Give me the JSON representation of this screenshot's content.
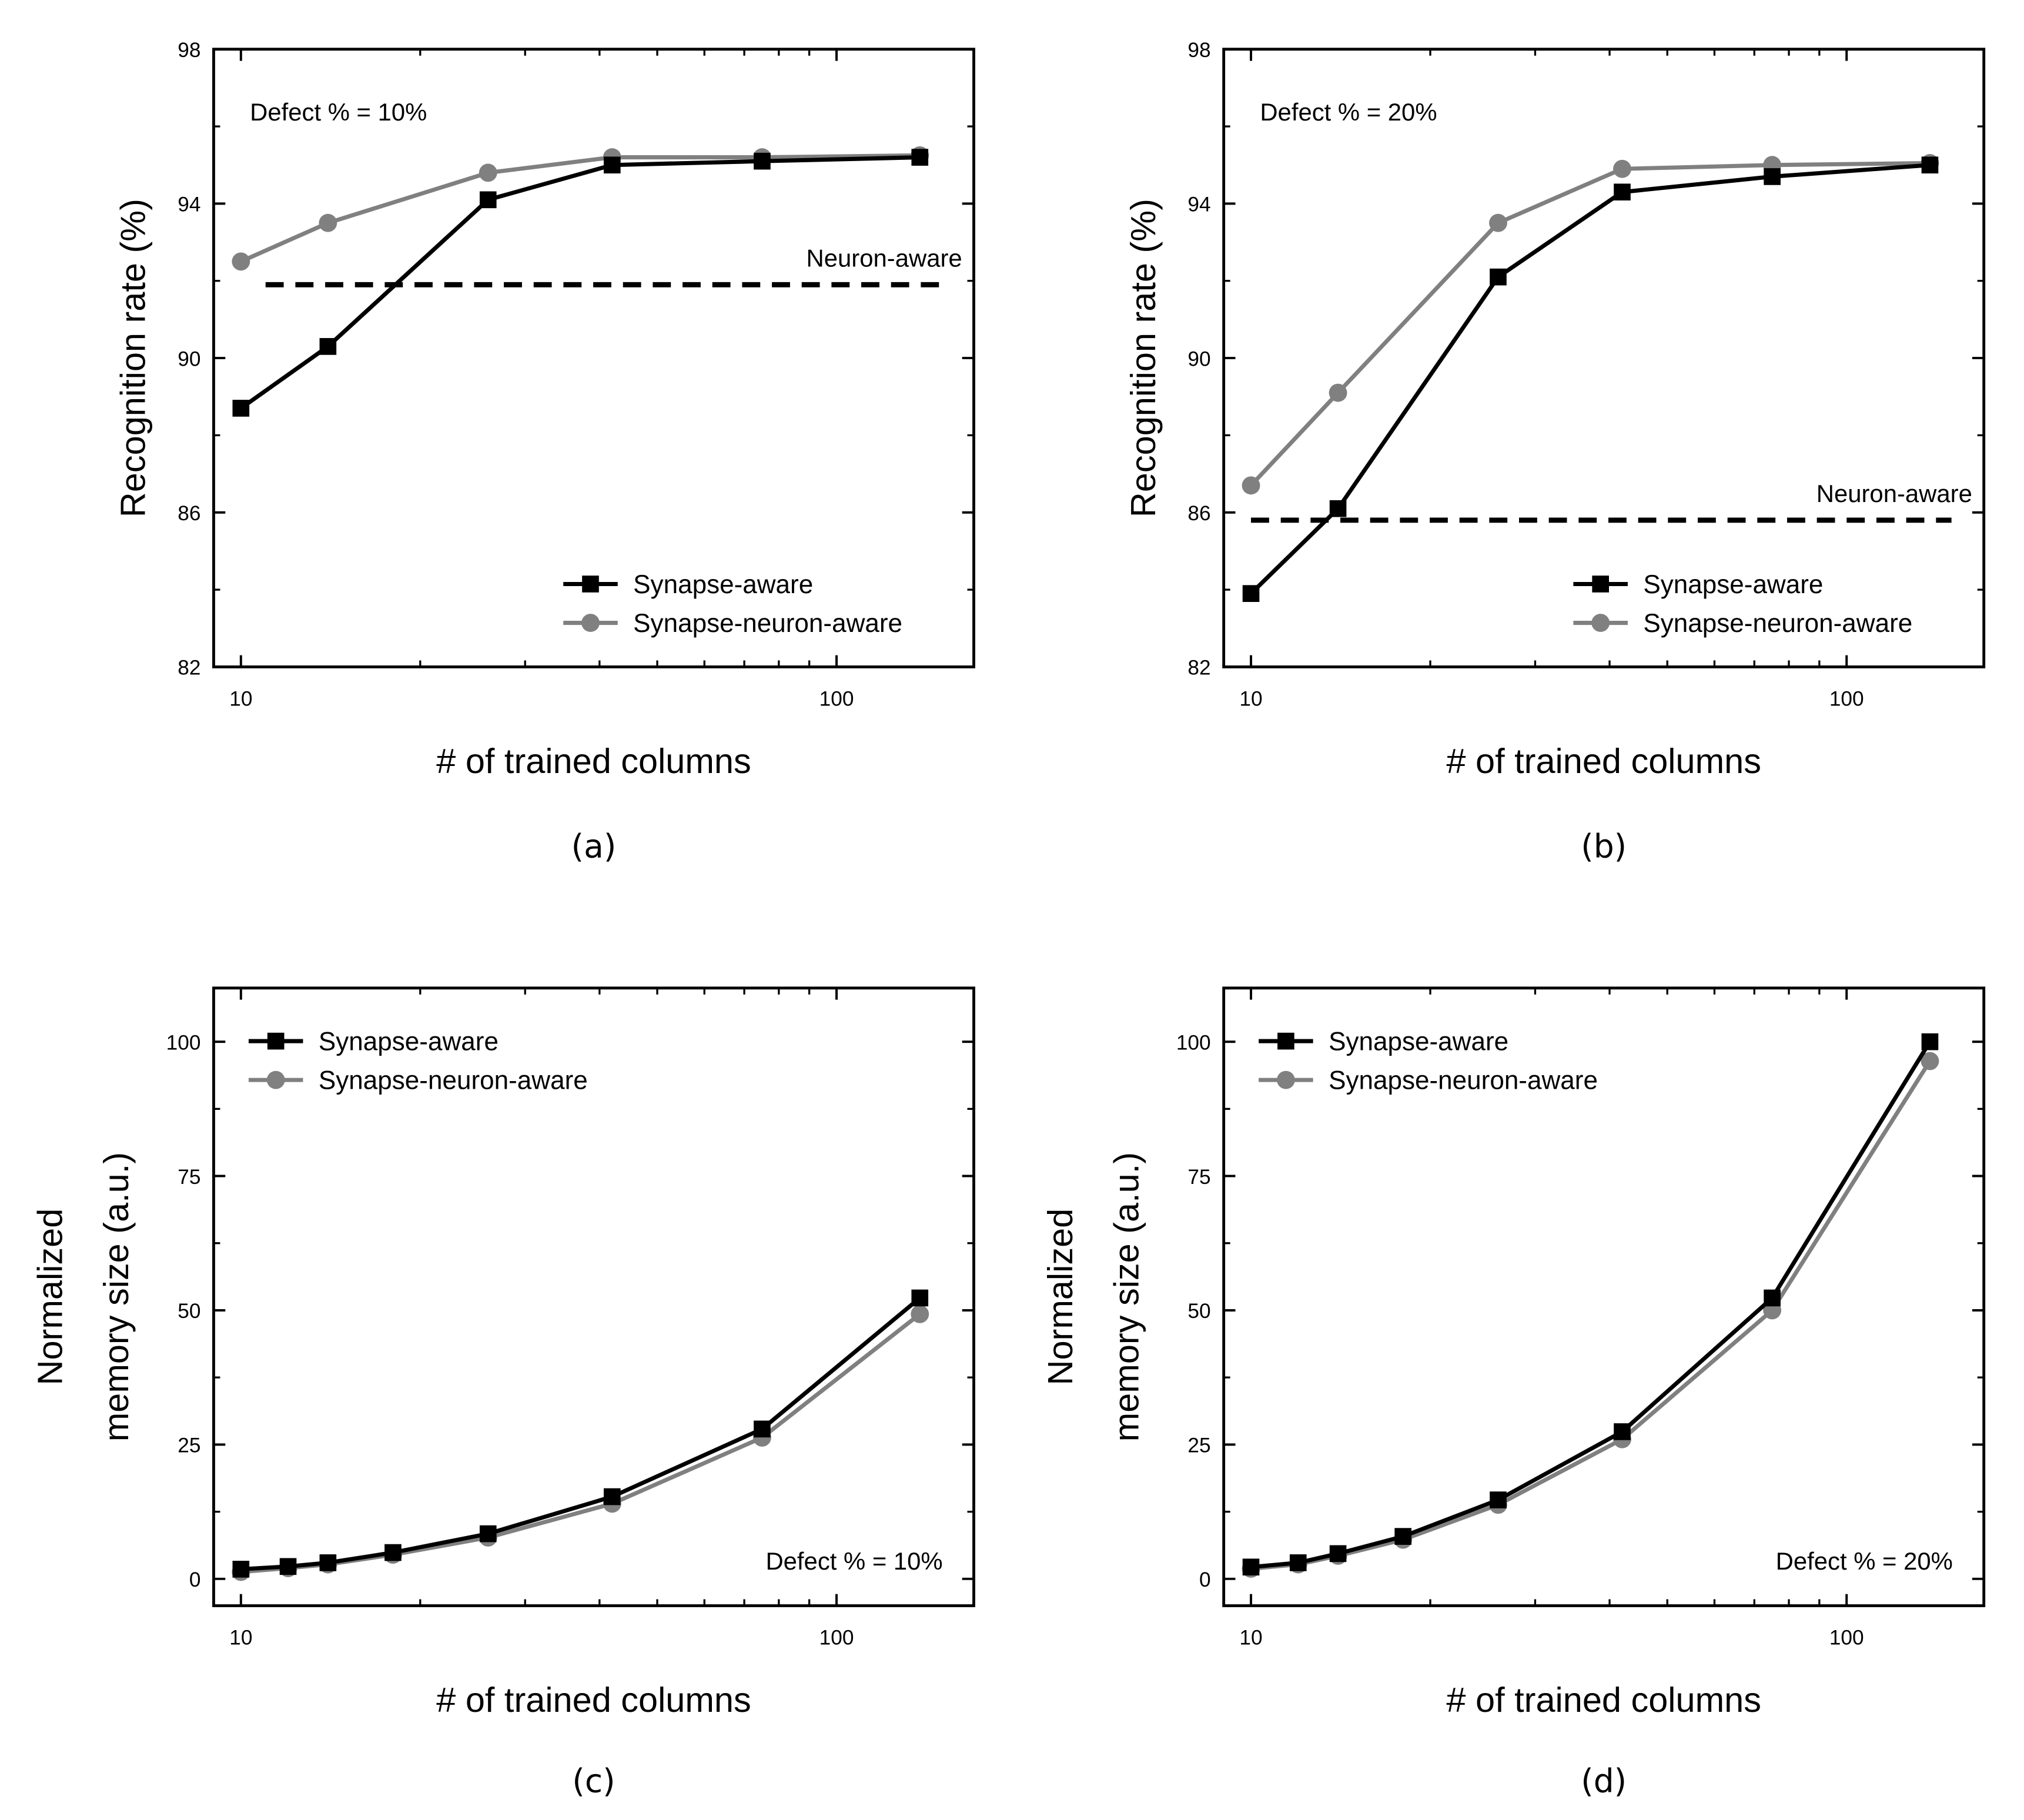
{
  "chart_data": [
    {
      "id": "a",
      "type": "line",
      "caption": "(a)",
      "xlabel": "# of trained columns",
      "ylabel": "Recognition rate (%)",
      "xscale": "log",
      "xlim": [
        9,
        170
      ],
      "ylim": [
        82,
        98
      ],
      "xticks": [
        10,
        100
      ],
      "xticklabels": [
        "10",
        "100"
      ],
      "yticks": [
        82,
        86,
        90,
        94,
        98
      ],
      "yticklabels": [
        "82",
        "86",
        "90",
        "94",
        "98"
      ],
      "annotation": "Defect % = 10%",
      "annotation_position": "top-left",
      "legend_position": "bottom-right",
      "series": [
        {
          "name": "Synapse-aware",
          "color": "#000000",
          "marker": "square",
          "x": [
            10,
            14,
            26,
            42,
            75,
            138
          ],
          "y": [
            88.7,
            90.3,
            94.1,
            95.0,
            95.1,
            95.2
          ]
        },
        {
          "name": "Synapse-neuron-aware",
          "color": "#808080",
          "marker": "circle",
          "x": [
            10,
            14,
            26,
            42,
            75,
            138
          ],
          "y": [
            92.5,
            93.5,
            94.8,
            95.2,
            95.2,
            95.25
          ]
        }
      ],
      "reference_line": {
        "name": "Neuron-aware",
        "label": "Neuron-aware",
        "y": 91.9,
        "x": [
          11,
          150
        ],
        "style": "dashed",
        "color": "#000000"
      }
    },
    {
      "id": "b",
      "type": "line",
      "caption": "(b)",
      "xlabel": "# of trained columns",
      "ylabel": "Recognition rate (%)",
      "xscale": "log",
      "xlim": [
        9,
        170
      ],
      "ylim": [
        82,
        98
      ],
      "xticks": [
        10,
        100
      ],
      "xticklabels": [
        "10",
        "100"
      ],
      "yticks": [
        82,
        86,
        90,
        94,
        98
      ],
      "yticklabels": [
        "82",
        "86",
        "90",
        "94",
        "98"
      ],
      "annotation": "Defect % = 20%",
      "annotation_position": "top-left",
      "legend_position": "bottom-right",
      "series": [
        {
          "name": "Synapse-aware",
          "color": "#000000",
          "marker": "square",
          "x": [
            10,
            14,
            26,
            42,
            75,
            138
          ],
          "y": [
            83.9,
            86.1,
            92.1,
            94.3,
            94.7,
            95.0
          ]
        },
        {
          "name": "Synapse-neuron-aware",
          "color": "#808080",
          "marker": "circle",
          "x": [
            10,
            14,
            26,
            42,
            75,
            138
          ],
          "y": [
            86.7,
            89.1,
            93.5,
            94.9,
            95.0,
            95.05
          ]
        }
      ],
      "reference_line": {
        "name": "Neuron-aware",
        "label": "Neuron-aware",
        "y": 85.8,
        "x": [
          10,
          150
        ],
        "style": "dashed",
        "color": "#000000"
      }
    },
    {
      "id": "c",
      "type": "line",
      "caption": "(c)",
      "xlabel": "# of trained columns",
      "ylabel_lines": [
        "Normalized",
        "memory size (a.u.)"
      ],
      "xscale": "log",
      "xlim": [
        9,
        170
      ],
      "ylim": [
        -5,
        110
      ],
      "xticks": [
        10,
        100
      ],
      "xticklabels": [
        "10",
        "100"
      ],
      "yticks": [
        0,
        25,
        50,
        75,
        100
      ],
      "yticklabels": [
        "0",
        "25",
        "50",
        "75",
        "100"
      ],
      "annotation": "Defect % = 10%",
      "annotation_position": "bottom-right",
      "legend_position": "top-left",
      "series": [
        {
          "name": "Synapse-aware",
          "color": "#000000",
          "marker": "square",
          "x": [
            10,
            12,
            14,
            18,
            26,
            42,
            75,
            138
          ],
          "y": [
            1.8,
            2.3,
            3.0,
            4.9,
            8.4,
            15.3,
            27.9,
            52.3
          ]
        },
        {
          "name": "Synapse-neuron-aware",
          "color": "#808080",
          "marker": "circle",
          "x": [
            10,
            12,
            14,
            18,
            26,
            42,
            75,
            138
          ],
          "y": [
            1.3,
            2.0,
            2.7,
            4.5,
            7.7,
            14.0,
            26.3,
            49.3
          ]
        }
      ]
    },
    {
      "id": "d",
      "type": "line",
      "caption": "(d)",
      "xlabel": "# of trained columns",
      "ylabel_lines": [
        "Normalized",
        "memory size (a.u.)"
      ],
      "xscale": "log",
      "xlim": [
        9,
        170
      ],
      "ylim": [
        -5,
        110
      ],
      "xticks": [
        10,
        100
      ],
      "xticklabels": [
        "10",
        "100"
      ],
      "yticks": [
        0,
        25,
        50,
        75,
        100
      ],
      "yticklabels": [
        "0",
        "25",
        "50",
        "75",
        "100"
      ],
      "annotation": "Defect % = 20%",
      "annotation_position": "bottom-right",
      "legend_position": "top-left",
      "series": [
        {
          "name": "Synapse-aware",
          "color": "#000000",
          "marker": "square",
          "x": [
            10,
            12,
            14,
            18,
            26,
            42,
            75,
            138
          ],
          "y": [
            2.2,
            3.0,
            4.7,
            7.9,
            14.7,
            27.4,
            52.3,
            100.0
          ]
        },
        {
          "name": "Synapse-neuron-aware",
          "color": "#808080",
          "marker": "circle",
          "x": [
            10,
            12,
            14,
            18,
            26,
            42,
            75,
            138
          ],
          "y": [
            1.9,
            2.7,
            4.3,
            7.3,
            13.8,
            26.0,
            50.0,
            96.4
          ]
        }
      ]
    }
  ]
}
